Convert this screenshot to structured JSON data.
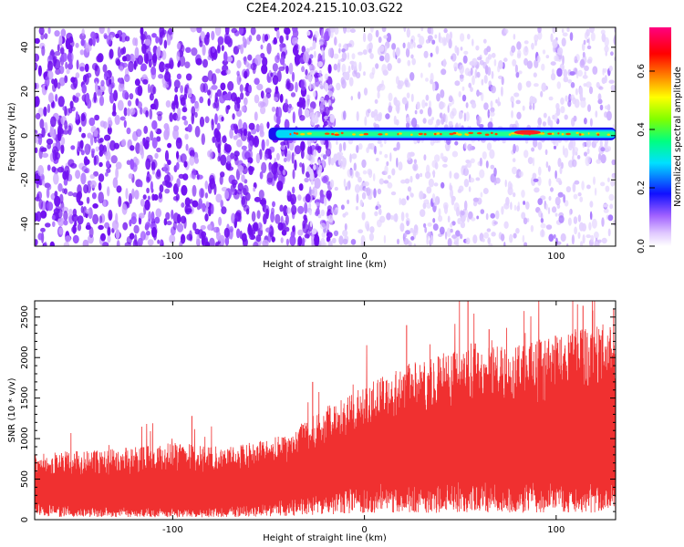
{
  "title": "C2E4.2024.215.10.03.G22",
  "chart_data": [
    {
      "type": "heatmap",
      "xlabel": "Height of straight line (km)",
      "ylabel": "Frequency (Hz)",
      "xlim": [
        -172,
        131
      ],
      "ylim": [
        -50,
        49
      ],
      "x_ticks": [
        -100,
        0,
        100
      ],
      "y_ticks": [
        -40,
        -20,
        0,
        20,
        40
      ],
      "colorbar": {
        "label": "Normalized spectral amplitude",
        "range": [
          0,
          0.75
        ],
        "ticks": [
          0.0,
          0.2,
          0.4,
          0.6
        ],
        "colors": [
          "#ffffff",
          "#a060ff",
          "#1010ff",
          "#00e0ff",
          "#00ff80",
          "#80ff00",
          "#ffff00",
          "#ff8000",
          "#ff0000",
          "#ff0080"
        ]
      },
      "features": [
        {
          "name": "dense_noise_region",
          "x_range": [
            -172,
            -30
          ],
          "level": 0.1
        },
        {
          "name": "sparse_noise_region",
          "x_range": [
            -30,
            131
          ],
          "level": 0.05
        },
        {
          "name": "signal_band",
          "x_range": [
            -50,
            131
          ],
          "frequency": 0.8,
          "level": 0.4
        },
        {
          "name": "peak",
          "x_range": [
            78,
            92
          ],
          "frequency": 1.5,
          "level": 0.7
        }
      ]
    },
    {
      "type": "line",
      "xlabel": "Height of straight line (km)",
      "ylabel": "SNR (10 * v/v)",
      "xlim": [
        -172,
        131
      ],
      "ylim": [
        0,
        2700
      ],
      "x_ticks": [
        -100,
        0,
        100
      ],
      "y_ticks": [
        0,
        500,
        1000,
        1500,
        2000,
        2500
      ],
      "color": "#f03030",
      "envelope": {
        "x": [
          -172,
          -140,
          -100,
          -70,
          -40,
          -25,
          -10,
          0,
          20,
          40,
          60,
          80,
          100,
          120,
          131
        ],
        "lower": [
          180,
          150,
          130,
          150,
          230,
          300,
          360,
          400,
          430,
          420,
          440,
          420,
          450,
          430,
          440
        ],
        "upper": [
          820,
          860,
          950,
          900,
          1050,
          1350,
          1500,
          1650,
          1900,
          2050,
          2250,
          2150,
          2300,
          2400,
          2450
        ]
      },
      "spikes": [
        {
          "x": -90,
          "y": 1280
        },
        {
          "x": -27,
          "y": 1700
        },
        {
          "x": 22,
          "y": 2400
        },
        {
          "x": 54,
          "y": 2700
        },
        {
          "x": 65,
          "y": 2350
        },
        {
          "x": 102,
          "y": 2220
        },
        {
          "x": 110,
          "y": 2350
        },
        {
          "x": 114,
          "y": 2640
        },
        {
          "x": 119,
          "y": 2580
        },
        {
          "x": 130,
          "y": 2600
        }
      ]
    }
  ]
}
